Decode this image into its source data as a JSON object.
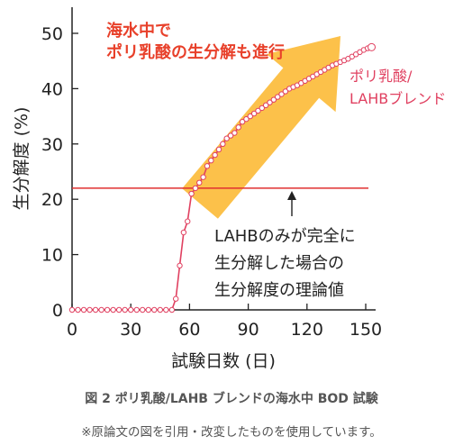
{
  "chart_data": {
    "type": "scatter",
    "xlabel": "試験日数 (日)",
    "ylabel": "生分解度 (%)",
    "xlim": [
      0,
      155
    ],
    "ylim": [
      0,
      55
    ],
    "x_ticks": [
      0,
      30,
      60,
      90,
      120,
      150
    ],
    "y_ticks": [
      0,
      10,
      20,
      30,
      40,
      50
    ],
    "grid": false,
    "series": [
      {
        "name": "ポリ乳酸/LAHBブレンド",
        "color": "#e04060",
        "x": [
          0,
          3,
          6,
          9,
          12,
          15,
          18,
          21,
          24,
          27,
          30,
          33,
          36,
          39,
          42,
          45,
          48,
          51,
          53,
          55,
          57,
          59,
          61,
          63,
          65,
          67,
          69,
          71,
          73,
          75,
          77,
          79,
          81,
          83,
          85,
          87,
          89,
          91,
          93,
          95,
          97,
          99,
          101,
          103,
          105,
          107,
          109,
          111,
          113,
          115,
          117,
          119,
          121,
          123,
          125,
          127,
          129,
          131,
          133,
          135,
          137,
          139,
          141,
          143,
          145,
          147,
          149,
          151,
          153
        ],
        "y": [
          0,
          0,
          0,
          0,
          0,
          0,
          0,
          0,
          0,
          0,
          0,
          0,
          0,
          0,
          0,
          0,
          0,
          0,
          2,
          8,
          14,
          16,
          21,
          22,
          23,
          24,
          26,
          27,
          28,
          29,
          30,
          31,
          31.5,
          32,
          33,
          34,
          34.5,
          35,
          35.5,
          36,
          36.5,
          37,
          37.5,
          38,
          38.5,
          39,
          39.5,
          40,
          40.3,
          40.6,
          41,
          41.4,
          41.8,
          42.2,
          42.6,
          43,
          43.4,
          43.8,
          44.2,
          44.5,
          44.8,
          45.1,
          45.4,
          45.8,
          46.2,
          46.6,
          47,
          47.3,
          47.5
        ]
      }
    ],
    "reference_line": {
      "y": 22
    },
    "annotations": {
      "headline_1": "海水中で",
      "headline_2": "ポリ乳酸の生分解も進行",
      "series_label_1": "ポリ乳酸/",
      "series_label_2": "LAHBブレンド",
      "reference_1": "LAHBのみが完全に",
      "reference_2": "生分解した場合の",
      "reference_3": "生分解度の理論値"
    },
    "colors": {
      "arrow": "#fcc14a",
      "headline": "#e8402a",
      "series": "#e04060",
      "reference": "#e03030"
    }
  },
  "caption": "図 2 ポリ乳酸/LAHB ブレンドの海水中 BOD 試験",
  "note": "※原論文の図を引用・改変したものを使用しています。"
}
